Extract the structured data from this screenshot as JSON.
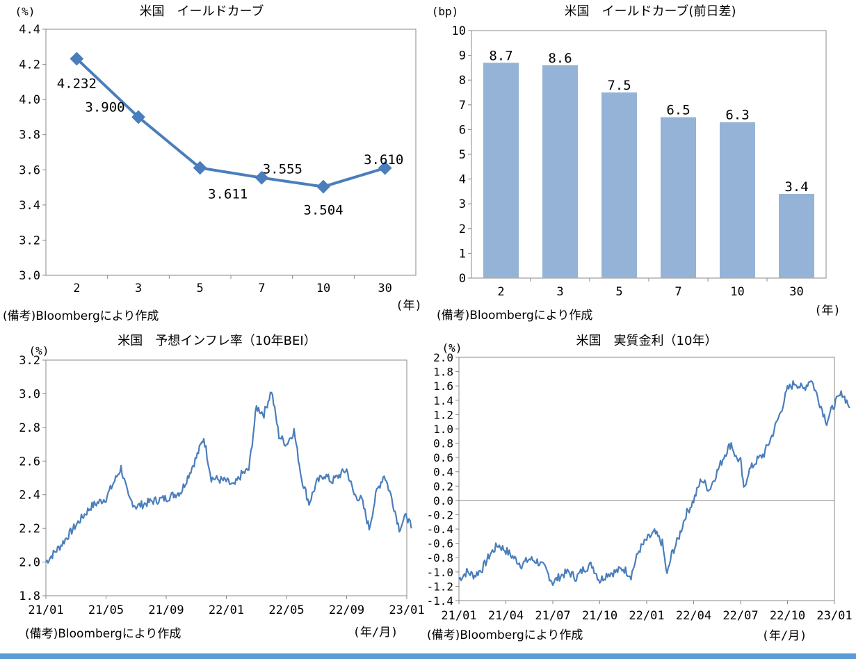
{
  "accent_color": "#4a7ebb",
  "bar_color": "#95b3d7",
  "chart_data": [
    {
      "id": "yield-curve",
      "type": "line",
      "title": "米国　イールドカーブ",
      "ylabel": "(%)",
      "xunit": "(年)",
      "categories": [
        "2",
        "3",
        "5",
        "7",
        "10",
        "30"
      ],
      "values": [
        4.232,
        3.9,
        3.611,
        3.555,
        3.504,
        3.61
      ],
      "data_labels": [
        "4.232",
        "3.900",
        "3.611",
        "3.555",
        "3.504",
        "3.610"
      ],
      "ylim": [
        3.0,
        4.4
      ],
      "yticks": [
        "4.4",
        "4.2",
        "4.0",
        "3.8",
        "3.6",
        "3.4",
        "3.2",
        "3.0"
      ],
      "source": "(備考)Bloombergにより作成"
    },
    {
      "id": "yield-change",
      "type": "bar",
      "title": "米国　イールドカーブ(前日差)",
      "ylabel": "(bp)",
      "xunit": "(年)",
      "categories": [
        "2",
        "3",
        "5",
        "7",
        "10",
        "30"
      ],
      "values": [
        8.7,
        8.6,
        7.5,
        6.5,
        6.3,
        3.4
      ],
      "data_labels": [
        "8.7",
        "8.6",
        "7.5",
        "6.5",
        "6.3",
        "3.4"
      ],
      "ylim": [
        0,
        10
      ],
      "yticks": [
        "10",
        "9",
        "8",
        "7",
        "6",
        "5",
        "4",
        "3",
        "2",
        "1",
        "0"
      ],
      "source": "(備考)Bloombergにより作成"
    },
    {
      "id": "bei",
      "type": "line",
      "title": "米国　予想インフレ率（10年BEI）",
      "ylabel": "(%)",
      "xunit": "(年/月)",
      "xticks": [
        "21/01",
        "21/05",
        "21/09",
        "22/01",
        "22/05",
        "22/09",
        "23/01"
      ],
      "ylim": [
        1.8,
        3.2
      ],
      "yticks": [
        "3.2",
        "3.0",
        "2.8",
        "2.6",
        "2.4",
        "2.2",
        "2.0",
        "1.8"
      ],
      "series_points": [
        [
          0,
          2.0
        ],
        [
          1,
          2.1
        ],
        [
          2,
          2.22
        ],
        [
          3,
          2.33
        ],
        [
          4,
          2.38
        ],
        [
          4.5,
          2.47
        ],
        [
          5,
          2.56
        ],
        [
          5.5,
          2.38
        ],
        [
          6,
          2.33
        ],
        [
          7,
          2.36
        ],
        [
          8,
          2.38
        ],
        [
          9,
          2.42
        ],
        [
          10,
          2.62
        ],
        [
          10.5,
          2.74
        ],
        [
          11,
          2.5
        ],
        [
          12,
          2.48
        ],
        [
          12.5,
          2.45
        ],
        [
          13,
          2.52
        ],
        [
          13.5,
          2.55
        ],
        [
          14,
          2.92
        ],
        [
          14.5,
          2.88
        ],
        [
          15,
          3.02
        ],
        [
          15.5,
          2.75
        ],
        [
          16,
          2.7
        ],
        [
          16.5,
          2.78
        ],
        [
          17,
          2.5
        ],
        [
          17.5,
          2.35
        ],
        [
          18,
          2.47
        ],
        [
          18.5,
          2.52
        ],
        [
          19,
          2.48
        ],
        [
          20,
          2.55
        ],
        [
          20.5,
          2.4
        ],
        [
          21,
          2.37
        ],
        [
          21.5,
          2.2
        ],
        [
          22,
          2.42
        ],
        [
          22.5,
          2.52
        ],
        [
          23,
          2.38
        ],
        [
          23.5,
          2.2
        ],
        [
          24,
          2.28
        ],
        [
          24.3,
          2.2
        ]
      ],
      "source": "(備考)Bloombergにより作成"
    },
    {
      "id": "real-rate",
      "type": "line",
      "title": "米国　実質金利（10年）",
      "ylabel": "(%)",
      "xunit": "(年/月)",
      "xticks": [
        "21/01",
        "21/04",
        "21/07",
        "21/10",
        "22/01",
        "22/04",
        "22/07",
        "22/10",
        "23/01"
      ],
      "ylim": [
        -1.4,
        2.0
      ],
      "yticks": [
        "2.0",
        "1.8",
        "1.6",
        "1.4",
        "1.2",
        "1.0",
        "0.8",
        "0.6",
        "0.4",
        "0.2",
        "0.0",
        "-0.2",
        "-0.4",
        "-0.6",
        "-0.8",
        "-1.0",
        "-1.2",
        "-1.4"
      ],
      "series_points": [
        [
          0,
          -1.1
        ],
        [
          0.5,
          -1.0
        ],
        [
          1,
          -1.05
        ],
        [
          1.5,
          -0.95
        ],
        [
          2,
          -0.75
        ],
        [
          2.5,
          -0.62
        ],
        [
          3,
          -0.7
        ],
        [
          3.5,
          -0.8
        ],
        [
          4,
          -0.9
        ],
        [
          4.5,
          -0.82
        ],
        [
          5,
          -0.85
        ],
        [
          5.5,
          -0.95
        ],
        [
          6,
          -1.15
        ],
        [
          6.5,
          -1.05
        ],
        [
          7,
          -1.0
        ],
        [
          7.5,
          -1.08
        ],
        [
          8,
          -0.95
        ],
        [
          8.5,
          -0.9
        ],
        [
          9,
          -1.12
        ],
        [
          9.5,
          -1.02
        ],
        [
          10,
          -1.0
        ],
        [
          10.5,
          -0.95
        ],
        [
          11,
          -1.05
        ],
        [
          11.5,
          -0.7
        ],
        [
          12,
          -0.55
        ],
        [
          12.5,
          -0.45
        ],
        [
          13,
          -0.6
        ],
        [
          13.3,
          -1.05
        ],
        [
          13.6,
          -0.75
        ],
        [
          14,
          -0.55
        ],
        [
          14.5,
          -0.2
        ],
        [
          15,
          0.0
        ],
        [
          15.5,
          0.3
        ],
        [
          16,
          0.15
        ],
        [
          16.5,
          0.4
        ],
        [
          17,
          0.65
        ],
        [
          17.4,
          0.8
        ],
        [
          17.7,
          0.6
        ],
        [
          18,
          0.55
        ],
        [
          18.2,
          0.15
        ],
        [
          18.5,
          0.4
        ],
        [
          19,
          0.55
        ],
        [
          19.5,
          0.65
        ],
        [
          20,
          0.9
        ],
        [
          20.5,
          1.2
        ],
        [
          21,
          1.55
        ],
        [
          21.5,
          1.65
        ],
        [
          22,
          1.55
        ],
        [
          22.5,
          1.7
        ],
        [
          23,
          1.4
        ],
        [
          23.5,
          1.1
        ],
        [
          24,
          1.35
        ],
        [
          24.5,
          1.5
        ],
        [
          25,
          1.3
        ]
      ],
      "source": "(備考)Bloombergにより作成"
    }
  ]
}
